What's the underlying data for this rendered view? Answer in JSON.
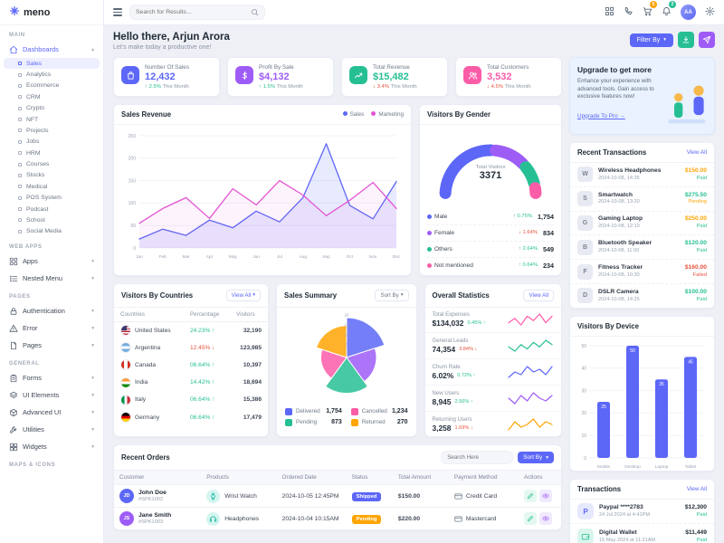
{
  "app": {
    "logo": "meno"
  },
  "topbar": {
    "search_placeholder": "Search for Results...",
    "cart_badge": "5",
    "bell_badge": "2"
  },
  "sidebar": {
    "sections": [
      {
        "label": "MAIN",
        "items": [
          {
            "label": "Dashboards",
            "icon": "home",
            "active": true,
            "expanded": true,
            "children": [
              "Sales",
              "Analytics",
              "Ecommerce",
              "CRM",
              "Crypto",
              "NFT",
              "Projects",
              "Jobs",
              "HRM",
              "Courses",
              "Stocks",
              "Medical",
              "POS System",
              "Podcast",
              "School",
              "Social Media"
            ],
            "active_child": "Sales"
          }
        ]
      },
      {
        "label": "WEB APPS",
        "items": [
          {
            "label": "Apps",
            "icon": "apps"
          },
          {
            "label": "Nested Menu",
            "icon": "list"
          }
        ]
      },
      {
        "label": "PAGES",
        "items": [
          {
            "label": "Authentication",
            "icon": "lock"
          },
          {
            "label": "Error",
            "icon": "alert"
          },
          {
            "label": "Pages",
            "icon": "file"
          }
        ]
      },
      {
        "label": "GENERAL",
        "items": [
          {
            "label": "Forms",
            "icon": "clipboard"
          },
          {
            "label": "UI Elements",
            "icon": "layers"
          },
          {
            "label": "Advanced UI",
            "icon": "box"
          },
          {
            "label": "Utilities",
            "icon": "tool"
          },
          {
            "label": "Widgets",
            "icon": "widget"
          }
        ]
      },
      {
        "label": "MAPS & ICONS",
        "items": []
      }
    ]
  },
  "page": {
    "greeting_title": "Hello there, Arjun Arora",
    "greeting_subtitle": "Let's make today a productive one!",
    "filter_label": "Filter By"
  },
  "stat_cards": [
    {
      "title": "Number Of Sales",
      "value": "12,432",
      "change": "2.5%",
      "direction": "up",
      "period": "This Month",
      "icon": "bag",
      "color": "#5c67f7"
    },
    {
      "title": "Profit By Sale",
      "value": "$4,132",
      "change": "1.5%",
      "direction": "up",
      "period": "This Month",
      "icon": "dollar",
      "color": "#9e5cf7"
    },
    {
      "title": "Total Revenue",
      "value": "$15,482",
      "change": "3.4%",
      "direction": "down",
      "period": "This Month",
      "icon": "trend",
      "color": "#26bf94"
    },
    {
      "title": "Total Customers",
      "value": "3,532",
      "change": "4.5%",
      "direction": "down",
      "period": "This Month",
      "icon": "users",
      "color": "#fb5ca8"
    }
  ],
  "upgrade": {
    "title": "Upgrade to get more",
    "body": "Enhance your experience with advanced tools. Gain access to exclusive features now!",
    "cta": "Upgrade To Pro →"
  },
  "cards": {
    "sales_revenue_title": "Sales Revenue",
    "gender_title": "Visitors By Gender",
    "recent_transactions_title": "Recent Transactions",
    "countries_title": "Visitors By Countries",
    "summary_title": "Sales Summary",
    "overall_title": "Overall Statistics",
    "device_title": "Visitors By Device",
    "orders_title": "Recent Orders",
    "transactions_title": "Transactions",
    "view_all": "View All",
    "sort_by": "Sort By",
    "orders_search_placeholder": "Search Here"
  },
  "recent_transactions": [
    {
      "name": "Wireless Headphones",
      "datetime": "2024-10-08, 14:35",
      "amount": "$150.00",
      "amount_color": "#ffa505",
      "status": "Paid",
      "status_color": "#26bf94"
    },
    {
      "name": "Smartwatch",
      "datetime": "2024-10-08, 13:20",
      "amount": "$275.50",
      "amount_color": "#26bf94",
      "status": "Pending",
      "status_color": "#ffa505"
    },
    {
      "name": "Gaming Laptop",
      "datetime": "2024-10-08, 12:10",
      "amount": "$250.00",
      "amount_color": "#ffa505",
      "status": "Paid",
      "status_color": "#26bf94"
    },
    {
      "name": "Bluetooth Speaker",
      "datetime": "2024-10-08, 11:50",
      "amount": "$120.00",
      "amount_color": "#26bf94",
      "status": "Paid",
      "status_color": "#26bf94"
    },
    {
      "name": "Fitness Tracker",
      "datetime": "2024-10-08, 10:30",
      "amount": "$160.00",
      "amount_color": "#e6533c",
      "status": "Failed",
      "status_color": "#e6533c"
    },
    {
      "name": "DSLR Camera",
      "datetime": "2024-10-08, 14:25",
      "amount": "$100.00",
      "amount_color": "#26bf94",
      "status": "Paid",
      "status_color": "#26bf94"
    }
  ],
  "countries": {
    "headers": [
      "Countries",
      "Percentage",
      "Visitors"
    ],
    "rows": [
      {
        "name": "United States",
        "flag": "us",
        "percentage": "24.23%",
        "direction": "up",
        "visitors": "32,190"
      },
      {
        "name": "Argentina",
        "flag": "ar",
        "percentage": "12.45%",
        "direction": "down",
        "visitors": "123,985"
      },
      {
        "name": "Canada",
        "flag": "ca",
        "percentage": "06.64%",
        "direction": "up",
        "visitors": "10,397"
      },
      {
        "name": "India",
        "flag": "in",
        "percentage": "14.42%",
        "direction": "up",
        "visitors": "18,694"
      },
      {
        "name": "Italy",
        "flag": "it",
        "percentage": "06.64%",
        "direction": "up",
        "visitors": "15,386"
      },
      {
        "name": "Germany",
        "flag": "de",
        "percentage": "06.64%",
        "direction": "up",
        "visitors": "17,479"
      }
    ]
  },
  "summary_legend": [
    {
      "label": "Delivered",
      "value": "1,754",
      "color": "#5c67f7"
    },
    {
      "label": "Cancelled",
      "value": "1,234",
      "color": "#fb5ca8"
    },
    {
      "label": "Pending",
      "value": "873",
      "color": "#26bf94"
    },
    {
      "label": "Returned",
      "value": "270",
      "color": "#ffa505"
    }
  ],
  "overall_stats": [
    {
      "label": "Total Expenses",
      "value": "$134,032",
      "change": "0.45%",
      "direction": "up"
    },
    {
      "label": "General Leads",
      "value": "74,354",
      "change": "3.84%",
      "direction": "down"
    },
    {
      "label": "Churn Rate",
      "value": "6.02%",
      "change": "0.72%",
      "direction": "up"
    },
    {
      "label": "New Users",
      "value": "8,945",
      "change": "2.56%",
      "direction": "up"
    },
    {
      "label": "Returning Users",
      "value": "3,258",
      "change": "1.69%",
      "direction": "down"
    }
  ],
  "orders": {
    "headers": [
      "Customer",
      "Products",
      "Ordered Date",
      "Status",
      "Total Amount",
      "Payment Method",
      "Actions"
    ],
    "rows": [
      {
        "customer": "John Doe",
        "customer_id": "#SPK1002",
        "product": "Wrist Watch",
        "product_icon": "watch",
        "date": "2024-10-05 12:45PM",
        "status": "Shipped",
        "status_color": "#5c67f7",
        "amount": "$150.00",
        "payment": "Credit Card"
      },
      {
        "customer": "Jane Smith",
        "customer_id": "#SPK1003",
        "product": "Headphones",
        "product_icon": "headset",
        "date": "2024-10-04 10:15AM",
        "status": "Pending",
        "status_color": "#ffa505",
        "amount": "$220.00",
        "payment": "Mastercard"
      }
    ]
  },
  "transactions": [
    {
      "name": "Paypal ****2783",
      "datetime": "24 Jul 2024 at 4:41PM",
      "amount": "$12,300",
      "status": "Paid",
      "icon": "paypal"
    },
    {
      "name": "Digital Wallet",
      "datetime": "15 May 2024 at 11:21AM",
      "amount": "$11,449",
      "status": "Paid",
      "icon": "wallet"
    }
  ],
  "chart_data": [
    {
      "id": "sales_revenue",
      "type": "line",
      "title": "Sales Revenue",
      "categories": [
        "Jan",
        "Feb",
        "Mar",
        "Apr",
        "May",
        "Jun",
        "Jul",
        "Aug",
        "Sep",
        "Oct",
        "Nov",
        "Dec"
      ],
      "ylim": [
        0,
        250
      ],
      "yticks": [
        0,
        50,
        100,
        150,
        200,
        250
      ],
      "grid": true,
      "legend_position": "top-right",
      "series": [
        {
          "name": "Sales",
          "color": "#5c67f7",
          "values": [
            20,
            42,
            28,
            62,
            45,
            82,
            58,
            112,
            232,
            95,
            65,
            148
          ]
        },
        {
          "name": "Marketing",
          "color": "#e354d4",
          "values": [
            55,
            88,
            112,
            66,
            132,
            96,
            150,
            118,
            72,
            106,
            146,
            88
          ]
        }
      ]
    },
    {
      "id": "visitors_by_gender",
      "type": "donut-semi",
      "title": "Visitors By Gender",
      "center_label": "Total Visitors",
      "center_value": "3371",
      "segments": [
        {
          "label": "Male",
          "value": 1754,
          "display": "1,754",
          "change": "0.75%",
          "direction": "up",
          "color": "#5c67f7"
        },
        {
          "label": "Female",
          "value": 834,
          "display": "834",
          "change": "1.64%",
          "direction": "down",
          "color": "#9e5cf7"
        },
        {
          "label": "Others",
          "value": 549,
          "display": "549",
          "change": "2.64%",
          "direction": "up",
          "color": "#26bf94"
        },
        {
          "label": "Not mentioned",
          "value": 234,
          "display": "234",
          "change": "0.64%",
          "direction": "up",
          "color": "#fb5ca8"
        }
      ]
    },
    {
      "id": "sales_summary",
      "type": "polar-area",
      "title": "Sales Summary",
      "ticks": [
        5,
        10,
        15,
        20
      ],
      "slices": [
        {
          "value": 20,
          "color": "#5c67f7"
        },
        {
          "value": 15,
          "color": "#9e5cf7"
        },
        {
          "value": 18,
          "color": "#26bf94"
        },
        {
          "value": 13,
          "color": "#fb5ca8"
        },
        {
          "value": 16,
          "color": "#ffa505"
        }
      ]
    },
    {
      "id": "visitors_by_device",
      "type": "bar",
      "title": "Visitors By Device",
      "categories": [
        "Mobile",
        "Desktop",
        "Laptop",
        "Tablet"
      ],
      "values": [
        25,
        50,
        35,
        45
      ],
      "ylim": [
        0,
        50
      ],
      "yticks": [
        0,
        10,
        20,
        30,
        40,
        50
      ],
      "bar_color": "#5c67f7"
    },
    {
      "id": "overall_sparklines",
      "type": "line",
      "title": "Overall Statistics sparklines",
      "series": [
        {
          "name": "Total Expenses",
          "color": "#fb5ca8",
          "values": [
            3,
            5,
            2,
            6,
            4,
            7,
            3,
            6
          ]
        },
        {
          "name": "General Leads",
          "color": "#26bf94",
          "values": [
            4,
            2,
            5,
            3,
            6,
            4,
            7,
            5
          ]
        },
        {
          "name": "Churn Rate",
          "color": "#5c67f7",
          "values": [
            2,
            4,
            3,
            6,
            4,
            5,
            3,
            6
          ]
        },
        {
          "name": "New Users",
          "color": "#9e5cf7",
          "values": [
            5,
            3,
            6,
            4,
            7,
            5,
            4,
            6
          ]
        },
        {
          "name": "Returning Users",
          "color": "#ffa505",
          "values": [
            3,
            6,
            4,
            5,
            7,
            4,
            6,
            5
          ]
        }
      ]
    }
  ]
}
